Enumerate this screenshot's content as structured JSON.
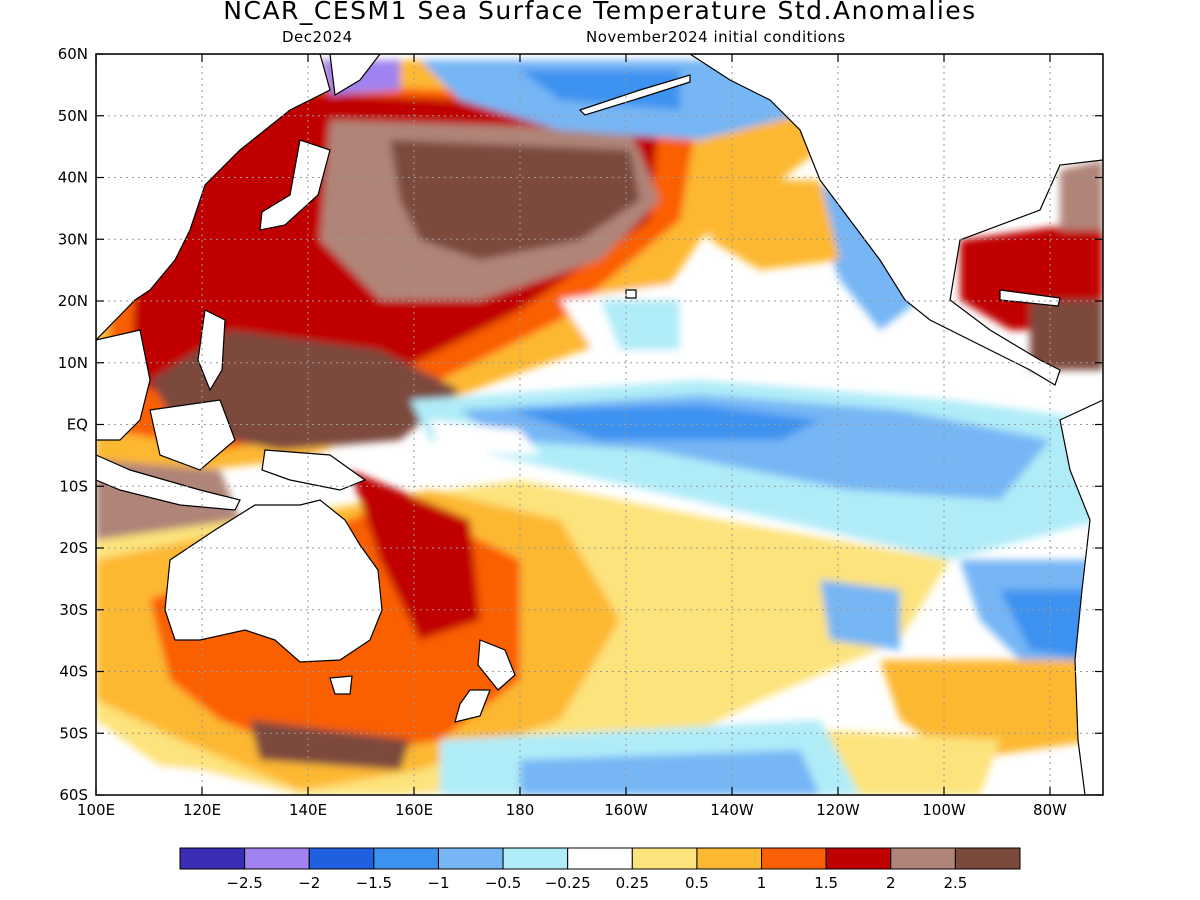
{
  "header": {
    "title": "NCAR_CESM1 Sea Surface Temperature Std.Anomalies",
    "subtitle_left": "Dec2024",
    "subtitle_right": "November2024 initial conditions"
  },
  "axes": {
    "lon_ticks": [
      "100E",
      "120E",
      "140E",
      "160E",
      "180",
      "160W",
      "140W",
      "120W",
      "100W",
      "80W"
    ],
    "lat_ticks": [
      "60N",
      "50N",
      "40N",
      "30N",
      "20N",
      "10N",
      "EQ",
      "10S",
      "20S",
      "30S",
      "40S",
      "50S",
      "60S"
    ]
  },
  "colorbar": {
    "colors": [
      "#3a2db4",
      "#a083f0",
      "#1f5fe0",
      "#3d92f0",
      "#76b6f5",
      "#b0ecf8",
      "#ffffff",
      "#fde37c",
      "#fdb832",
      "#fa5f05",
      "#c00000",
      "#b08478",
      "#7b4a3c"
    ],
    "labels": [
      "-2.5",
      "-2",
      "-1.5",
      "-1",
      "-0.5",
      "-0.25",
      "0.25",
      "0.5",
      "1",
      "1.5",
      "2",
      "2.5"
    ]
  }
}
